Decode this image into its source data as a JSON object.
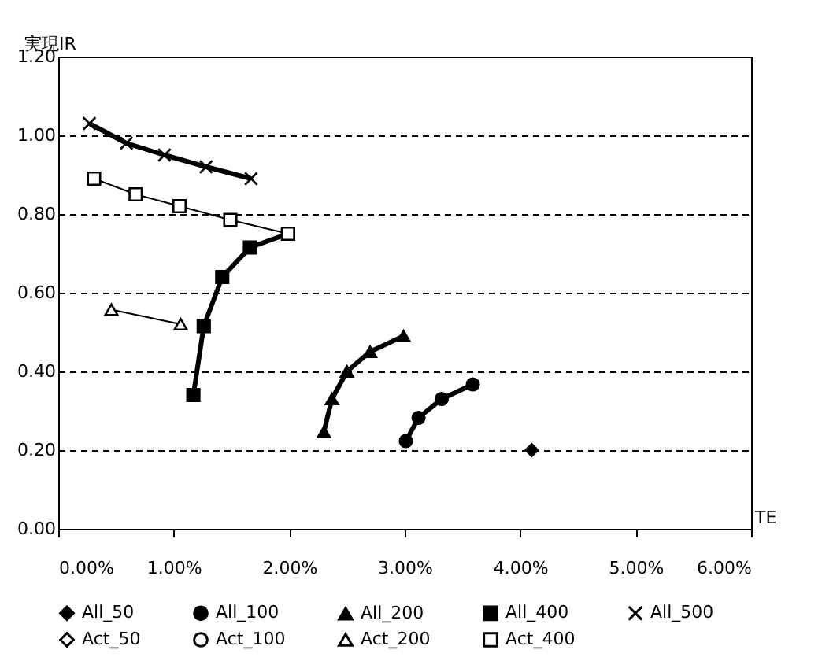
{
  "chart_data": {
    "type": "line",
    "xlabel": "TE",
    "ylabel": "実現IR",
    "xlim": [
      0,
      0.06
    ],
    "xticks": [
      {
        "value": 0,
        "label": "0.00%"
      },
      {
        "value": 0.01,
        "label": "1.00%"
      },
      {
        "value": 0.02,
        "label": "2.00%"
      },
      {
        "value": 0.03,
        "label": "3.00%"
      },
      {
        "value": 0.04,
        "label": "4.00%"
      },
      {
        "value": 0.05,
        "label": "5.00%"
      },
      {
        "value": 0.06,
        "label": "6.00%"
      }
    ],
    "ylim": [
      0,
      1.2
    ],
    "yticks": [
      {
        "value": 0,
        "label": "0.00"
      },
      {
        "value": 0.2,
        "label": "0.20"
      },
      {
        "value": 0.4,
        "label": "0.40"
      },
      {
        "value": 0.6,
        "label": "0.60"
      },
      {
        "value": 0.8,
        "label": "0.80"
      },
      {
        "value": 1.0,
        "label": "1.00"
      },
      {
        "value": 1.2,
        "label": "1.20"
      }
    ],
    "grid": "y",
    "legend": "bottom",
    "series": [
      {
        "name": "All_50",
        "color": "#000000",
        "marker": "diamond",
        "x": [
          0.041
        ],
        "values": [
          0.2
        ]
      },
      {
        "name": "All_100",
        "color": "#000000",
        "marker": "circle",
        "x": [
          0.0301,
          0.0312,
          0.0332,
          0.0359
        ],
        "values": [
          0.223,
          0.282,
          0.33,
          0.367
        ]
      },
      {
        "name": "All_200",
        "color": "#000000",
        "marker": "triangle",
        "x": [
          0.023,
          0.0237,
          0.025,
          0.027,
          0.0299
        ],
        "values": [
          0.246,
          0.33,
          0.4,
          0.45,
          0.49
        ]
      },
      {
        "name": "All_400",
        "color": "#000000",
        "marker": "square",
        "x": [
          0.0117,
          0.0126,
          0.0142,
          0.0166,
          0.0199
        ],
        "values": [
          0.34,
          0.515,
          0.64,
          0.715,
          0.75
        ]
      },
      {
        "name": "All_500",
        "color": "#000000",
        "marker": "cross",
        "x": [
          0.0027,
          0.0059,
          0.0092,
          0.0128,
          0.0167
        ],
        "values": [
          1.03,
          0.98,
          0.95,
          0.92,
          0.89
        ]
      },
      {
        "name": "Act_50",
        "color": "#ffffff",
        "marker": "diamond"
      },
      {
        "name": "Act_100",
        "color": "#ffffff",
        "marker": "circle"
      },
      {
        "name": "Act_200",
        "color": "#ffffff",
        "marker": "triangle",
        "x": [
          0.0046,
          0.0106
        ],
        "values": [
          0.557,
          0.52
        ]
      },
      {
        "name": "Act_400",
        "color": "#ffffff",
        "marker": "square",
        "x": [
          0.0031,
          0.0067,
          0.0105,
          0.0149,
          0.0199
        ],
        "values": [
          0.89,
          0.85,
          0.82,
          0.785,
          0.75
        ]
      }
    ]
  }
}
